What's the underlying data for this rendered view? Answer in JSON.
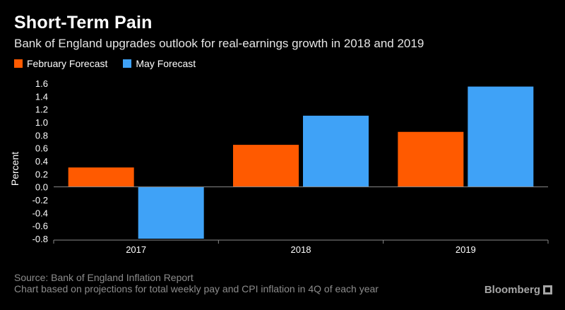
{
  "title": "Short-Term Pain",
  "subtitle": "Bank of England upgrades outlook for real-earnings growth in 2018 and 2019",
  "legend": [
    {
      "label": "February Forecast",
      "color": "#ff5a00"
    },
    {
      "label": "May Forecast",
      "color": "#3fa2f7"
    }
  ],
  "footer": {
    "source": "Source: Bank of England Inflation Report",
    "note": "Chart based on projections for total weekly pay and CPI inflation in 4Q of each year",
    "brand": "Bloomberg"
  },
  "chart_data": {
    "type": "bar",
    "title": "Short-Term Pain",
    "subtitle": "Bank of England upgrades outlook for real-earnings growth in 2018 and 2019",
    "categories": [
      "2017",
      "2018",
      "2019"
    ],
    "series": [
      {
        "name": "February Forecast",
        "color": "#ff5a00",
        "values": [
          0.3,
          0.65,
          0.85
        ]
      },
      {
        "name": "May Forecast",
        "color": "#3fa2f7",
        "values": [
          -0.8,
          1.1,
          1.55
        ]
      }
    ],
    "xlabel": "",
    "ylabel": "Percent",
    "ylim": [
      -0.8,
      1.6
    ],
    "yticks": [
      1.6,
      1.4,
      1.2,
      1.0,
      0.8,
      0.6,
      0.4,
      0.2,
      0.0,
      -0.2,
      -0.4,
      -0.6,
      -0.8
    ],
    "ytick_labels": [
      "1.6",
      "1.4",
      "1.2",
      "1.0",
      "0.8",
      "0.6",
      "0.4",
      "0.2",
      "0.0",
      "-0.2",
      "-0.4",
      "-0.6",
      "-0.8"
    ],
    "grid": false,
    "legend_position": "top-left"
  }
}
